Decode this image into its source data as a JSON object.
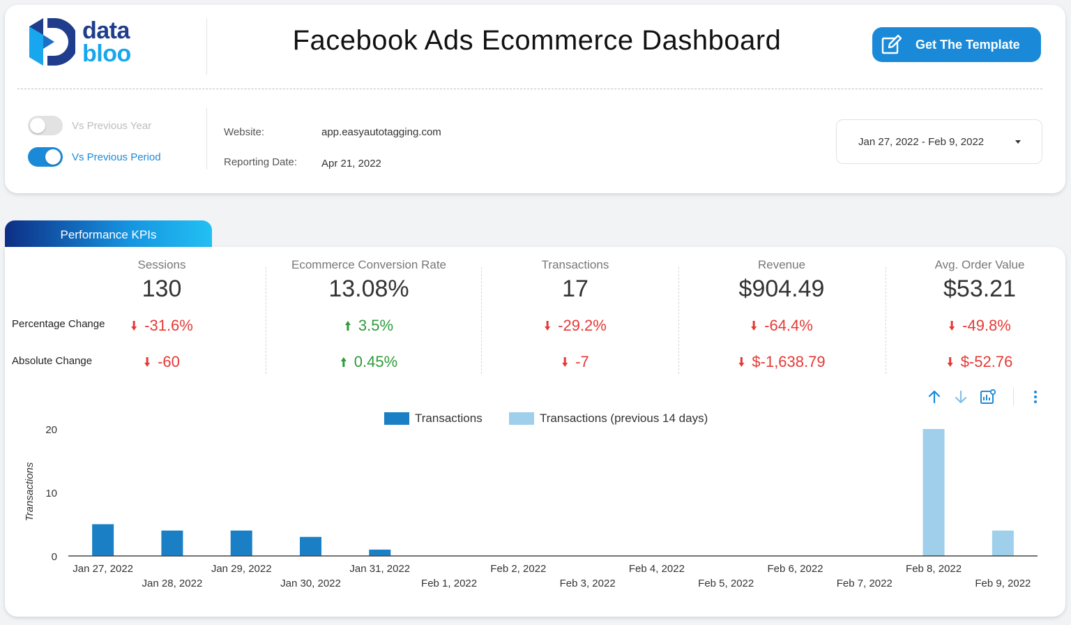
{
  "header": {
    "logo": {
      "word1": "data",
      "word2": "bloo"
    },
    "title": "Facebook Ads Ecommerce Dashboard",
    "cta_label": "Get The Template"
  },
  "controls": {
    "toggle_prev_year": {
      "label": "Vs Previous Year",
      "on": false
    },
    "toggle_prev_period": {
      "label": "Vs Previous Period",
      "on": true
    },
    "website_label": "Website:",
    "website_value": "app.easyautotagging.com",
    "reporting_label": "Reporting Date:",
    "reporting_value": "Apr 21, 2022",
    "date_range": "Jan 27, 2022 - Feb 9, 2022"
  },
  "section": {
    "tab_label": "Performance KPIs"
  },
  "kpis": {
    "row_labels": {
      "pct": "Percentage Change",
      "abs": "Absolute Change"
    },
    "items": [
      {
        "title": "Sessions",
        "value": "130",
        "pct": "-31.6%",
        "abs": "-60",
        "pct_dir": "down",
        "abs_dir": "down"
      },
      {
        "title": "Ecommerce Conversion Rate",
        "value": "13.08%",
        "pct": "3.5%",
        "abs": "0.45%",
        "pct_dir": "up",
        "abs_dir": "up"
      },
      {
        "title": "Transactions",
        "value": "17",
        "pct": "-29.2%",
        "abs": "-7",
        "pct_dir": "down",
        "abs_dir": "down"
      },
      {
        "title": "Revenue",
        "value": "$904.49",
        "pct": "-64.4%",
        "abs": "$-1,638.79",
        "pct_dir": "down",
        "abs_dir": "down"
      },
      {
        "title": "Avg. Order Value",
        "value": "$53.21",
        "pct": "-49.8%",
        "abs": "$-52.76",
        "pct_dir": "down",
        "abs_dir": "down"
      }
    ]
  },
  "colors": {
    "accent": "#1a8ad8",
    "negative": "#e53935",
    "positive": "#2e9b3a",
    "series_current": "#1a7fc4",
    "series_previous": "#9fcfea"
  },
  "chart_toolbar": [
    "arrow-up-icon",
    "arrow-down-icon",
    "chart-settings-icon",
    "more-vert-icon"
  ],
  "chart_data": {
    "type": "bar",
    "title": "",
    "xlabel": "",
    "ylabel": "Transactions",
    "ylim": [
      0,
      20
    ],
    "yticks": [
      0,
      10,
      20
    ],
    "grid": false,
    "legend_position": "top-center",
    "categories": [
      "Jan 27, 2022",
      "Jan 28, 2022",
      "Jan 29, 2022",
      "Jan 30, 2022",
      "Jan 31, 2022",
      "Feb 1, 2022",
      "Feb 2, 2022",
      "Feb 3, 2022",
      "Feb 4, 2022",
      "Feb 5, 2022",
      "Feb 6, 2022",
      "Feb 7, 2022",
      "Feb 8, 2022",
      "Feb 9, 2022"
    ],
    "series": [
      {
        "name": "Transactions",
        "values": [
          5,
          4,
          4,
          3,
          1,
          0,
          0,
          0,
          0,
          0,
          0,
          0,
          0,
          0
        ]
      },
      {
        "name": "Transactions (previous 14 days)",
        "values": [
          0,
          0,
          0,
          0,
          0,
          0,
          0,
          0,
          0,
          0,
          0,
          0,
          20,
          4
        ]
      }
    ]
  }
}
